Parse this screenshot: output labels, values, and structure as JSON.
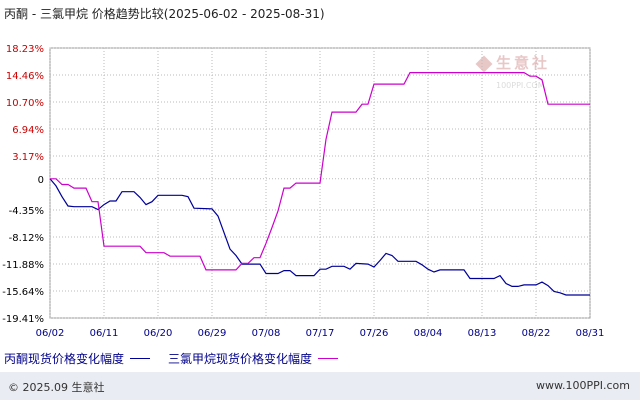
{
  "title": "丙酮 - 三氯甲烷 价格趋势比较(2025-06-02 - 2025-08-31)",
  "watermark": {
    "text": "生意社",
    "url": "100PPI.COM"
  },
  "footer": {
    "copyright": "© 2025.09 生意社",
    "url": "www.100PPI.com"
  },
  "colors": {
    "series1": "#000099",
    "series2": "#cc00cc",
    "ytick_pos": "#cc0000",
    "ytick_neg": "#000000",
    "xtick": "#000088"
  },
  "chart_data": {
    "type": "line",
    "title": "丙酮 - 三氯甲烷 价格趋势比较(2025-06-02 - 2025-08-31)",
    "xlabel": "",
    "ylabel": "",
    "x_tick_labels": [
      "06/02",
      "06/11",
      "06/20",
      "06/29",
      "07/08",
      "07/17",
      "07/26",
      "08/04",
      "08/13",
      "08/22",
      "08/31"
    ],
    "y_tick_labels": [
      "18.23%",
      "14.46%",
      "10.70%",
      "6.94%",
      "3.17%",
      "0",
      "-4.35%",
      "-8.12%",
      "-11.88%",
      "-15.64%",
      "-19.41%"
    ],
    "y_tick_values": [
      18.23,
      14.46,
      10.7,
      6.94,
      3.17,
      0,
      -4.35,
      -8.12,
      -11.88,
      -15.64,
      -19.41
    ],
    "xlim": [
      0,
      90
    ],
    "ylim": [
      -19.41,
      18.23
    ],
    "grid": true,
    "legend_position": "bottom",
    "series": [
      {
        "name": "丙酮现货价格变化幅度",
        "color": "#000099",
        "points": [
          [
            0,
            0
          ],
          [
            1,
            -1.0
          ],
          [
            2,
            -2.5
          ],
          [
            3,
            -3.8
          ],
          [
            4,
            -3.9
          ],
          [
            7,
            -3.9
          ],
          [
            8,
            -4.3
          ],
          [
            9,
            -3.6
          ],
          [
            10,
            -3.1
          ],
          [
            11,
            -3.1
          ],
          [
            12,
            -1.8
          ],
          [
            14,
            -1.8
          ],
          [
            15,
            -2.6
          ],
          [
            16,
            -3.6
          ],
          [
            17,
            -3.2
          ],
          [
            18,
            -2.3
          ],
          [
            22,
            -2.3
          ],
          [
            23,
            -2.5
          ],
          [
            24,
            -4.1
          ],
          [
            27,
            -4.2
          ],
          [
            28,
            -5.2
          ],
          [
            29,
            -7.5
          ],
          [
            30,
            -9.8
          ],
          [
            31,
            -10.7
          ],
          [
            32,
            -11.9
          ],
          [
            35,
            -11.9
          ],
          [
            36,
            -13.2
          ],
          [
            38,
            -13.2
          ],
          [
            39,
            -12.8
          ],
          [
            40,
            -12.8
          ],
          [
            41,
            -13.5
          ],
          [
            44,
            -13.5
          ],
          [
            45,
            -12.6
          ],
          [
            46,
            -12.6
          ],
          [
            47,
            -12.2
          ],
          [
            49,
            -12.2
          ],
          [
            50,
            -12.6
          ],
          [
            51,
            -11.8
          ],
          [
            53,
            -11.9
          ],
          [
            54,
            -12.3
          ],
          [
            55,
            -11.4
          ],
          [
            56,
            -10.4
          ],
          [
            57,
            -10.7
          ],
          [
            58,
            -11.5
          ],
          [
            61,
            -11.5
          ],
          [
            62,
            -12.0
          ],
          [
            63,
            -12.6
          ],
          [
            64,
            -13.0
          ],
          [
            65,
            -12.7
          ],
          [
            69,
            -12.7
          ],
          [
            70,
            -13.9
          ],
          [
            74,
            -13.9
          ],
          [
            75,
            -13.5
          ],
          [
            76,
            -14.6
          ],
          [
            77,
            -15.0
          ],
          [
            78,
            -15.0
          ],
          [
            79,
            -14.8
          ],
          [
            81,
            -14.8
          ],
          [
            82,
            -14.4
          ],
          [
            83,
            -14.9
          ],
          [
            84,
            -15.7
          ],
          [
            85,
            -15.9
          ],
          [
            86,
            -16.2
          ],
          [
            90,
            -16.2
          ]
        ]
      },
      {
        "name": "三氯甲烷现货价格变化幅度",
        "color": "#cc00cc",
        "points": [
          [
            0,
            0
          ],
          [
            1,
            0
          ],
          [
            2,
            -0.8
          ],
          [
            3,
            -0.8
          ],
          [
            4,
            -1.3
          ],
          [
            6,
            -1.3
          ],
          [
            7,
            -3.2
          ],
          [
            8,
            -3.2
          ],
          [
            9,
            -9.4
          ],
          [
            15,
            -9.4
          ],
          [
            16,
            -10.3
          ],
          [
            19,
            -10.3
          ],
          [
            20,
            -10.8
          ],
          [
            25,
            -10.8
          ],
          [
            26,
            -12.7
          ],
          [
            31,
            -12.7
          ],
          [
            32,
            -11.8
          ],
          [
            33,
            -11.8
          ],
          [
            34,
            -11.0
          ],
          [
            35,
            -11.0
          ],
          [
            36,
            -9.0
          ],
          [
            37,
            -6.8
          ],
          [
            38,
            -4.5
          ],
          [
            39,
            -1.3
          ],
          [
            40,
            -1.3
          ],
          [
            41,
            -0.6
          ],
          [
            45,
            -0.6
          ],
          [
            46,
            5.5
          ],
          [
            47,
            9.3
          ],
          [
            51,
            9.3
          ],
          [
            52,
            10.4
          ],
          [
            53,
            10.4
          ],
          [
            54,
            13.2
          ],
          [
            59,
            13.2
          ],
          [
            60,
            14.8
          ],
          [
            79,
            14.8
          ],
          [
            80,
            14.3
          ],
          [
            81,
            14.3
          ],
          [
            82,
            13.8
          ],
          [
            83,
            10.4
          ],
          [
            90,
            10.4
          ]
        ]
      }
    ]
  },
  "legend": [
    {
      "label": "丙酮现货价格变化幅度",
      "color": "#000099"
    },
    {
      "label": "三氯甲烷现货价格变化幅度",
      "color": "#cc00cc"
    }
  ]
}
